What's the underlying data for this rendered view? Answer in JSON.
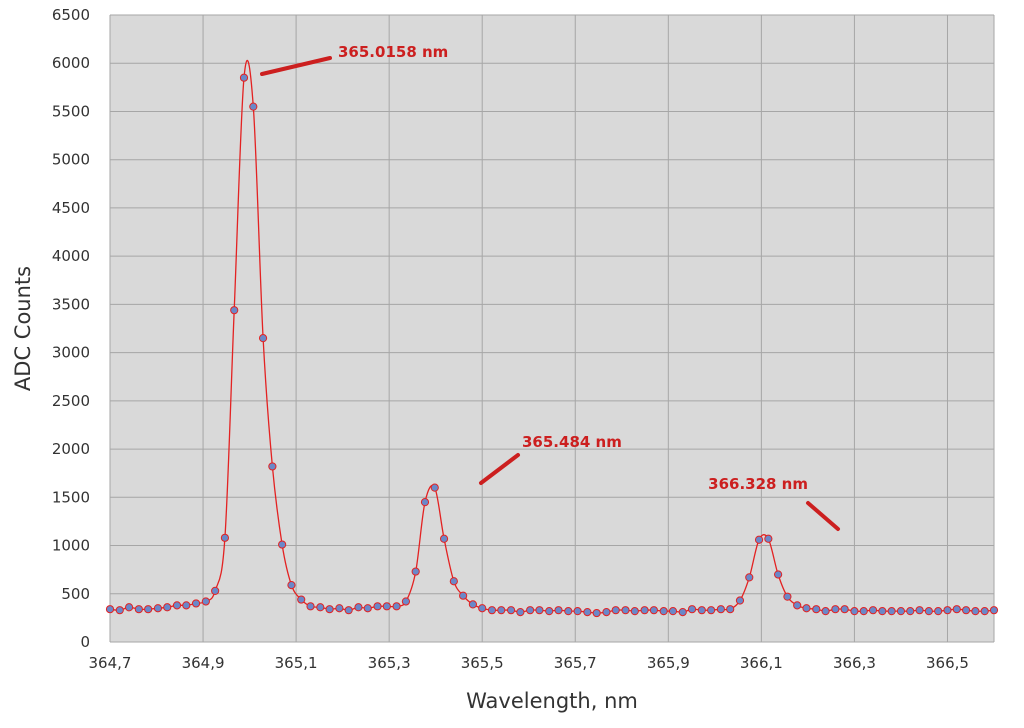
{
  "chart_data": {
    "type": "line",
    "title": "",
    "xlabel": "Wavelength, nm",
    "ylabel": "ADC Counts",
    "xlim": [
      364.7,
      366.6
    ],
    "ylim": [
      0,
      6500
    ],
    "grid": true,
    "colors": {
      "plot_background": "#d9d9d9",
      "gridline": "#a6a6a6",
      "line": "#e32222",
      "marker_fill": "#6a88c9",
      "marker_edge": "#e32222",
      "annotation": "#cc1f1f"
    },
    "x_ticks": [
      {
        "value": 364.7,
        "label": "364,7"
      },
      {
        "value": 364.9,
        "label": "364,9"
      },
      {
        "value": 365.1,
        "label": "365,1"
      },
      {
        "value": 365.3,
        "label": "365,3"
      },
      {
        "value": 365.5,
        "label": "365,5"
      },
      {
        "value": 365.7,
        "label": "365,7"
      },
      {
        "value": 365.9,
        "label": "365,9"
      },
      {
        "value": 366.1,
        "label": "366,1"
      },
      {
        "value": 366.3,
        "label": "366,3"
      },
      {
        "value": 366.5,
        "label": "366,5"
      }
    ],
    "y_ticks": [
      {
        "value": 0,
        "label": "0"
      },
      {
        "value": 500,
        "label": "500"
      },
      {
        "value": 1000,
        "label": "1000"
      },
      {
        "value": 1500,
        "label": "1500"
      },
      {
        "value": 2000,
        "label": "2000"
      },
      {
        "value": 2500,
        "label": "2500"
      },
      {
        "value": 3000,
        "label": "3000"
      },
      {
        "value": 3500,
        "label": "3500"
      },
      {
        "value": 4000,
        "label": "4000"
      },
      {
        "value": 4500,
        "label": "4500"
      },
      {
        "value": 5000,
        "label": "5000"
      },
      {
        "value": 5500,
        "label": "5500"
      },
      {
        "value": 6000,
        "label": "6000"
      },
      {
        "value": 6500,
        "label": "6500"
      }
    ],
    "series": [
      {
        "points": [
          [
            364.7,
            340
          ],
          [
            364.721,
            330
          ],
          [
            364.741,
            360
          ],
          [
            364.762,
            340
          ],
          [
            364.782,
            340
          ],
          [
            364.803,
            350
          ],
          [
            364.823,
            360
          ],
          [
            364.844,
            380
          ],
          [
            364.864,
            380
          ],
          [
            364.885,
            400
          ],
          [
            364.906,
            420
          ],
          [
            364.926,
            530
          ],
          [
            364.947,
            1080
          ],
          [
            364.967,
            3440
          ],
          [
            364.988,
            5850
          ],
          [
            365.008,
            5550
          ],
          [
            365.029,
            3150
          ],
          [
            365.049,
            1820
          ],
          [
            365.07,
            1010
          ],
          [
            365.09,
            590
          ],
          [
            365.111,
            440
          ],
          [
            365.131,
            370
          ],
          [
            365.152,
            360
          ],
          [
            365.172,
            340
          ],
          [
            365.193,
            350
          ],
          [
            365.213,
            330
          ],
          [
            365.234,
            360
          ],
          [
            365.254,
            350
          ],
          [
            365.275,
            370
          ],
          [
            365.295,
            370
          ],
          [
            365.316,
            370
          ],
          [
            365.336,
            420
          ],
          [
            365.357,
            730
          ],
          [
            365.377,
            1450
          ],
          [
            365.398,
            1600
          ],
          [
            365.418,
            1070
          ],
          [
            365.439,
            630
          ],
          [
            365.459,
            480
          ],
          [
            365.48,
            390
          ],
          [
            365.5,
            350
          ],
          [
            365.521,
            330
          ],
          [
            365.541,
            330
          ],
          [
            365.562,
            330
          ],
          [
            365.582,
            310
          ],
          [
            365.603,
            330
          ],
          [
            365.623,
            330
          ],
          [
            365.644,
            320
          ],
          [
            365.664,
            330
          ],
          [
            365.685,
            320
          ],
          [
            365.705,
            320
          ],
          [
            365.726,
            310
          ],
          [
            365.746,
            300
          ],
          [
            365.767,
            310
          ],
          [
            365.787,
            330
          ],
          [
            365.808,
            330
          ],
          [
            365.828,
            320
          ],
          [
            365.849,
            330
          ],
          [
            365.869,
            330
          ],
          [
            365.89,
            320
          ],
          [
            365.91,
            320
          ],
          [
            365.931,
            310
          ],
          [
            365.951,
            340
          ],
          [
            365.972,
            330
          ],
          [
            365.992,
            330
          ],
          [
            366.013,
            340
          ],
          [
            366.033,
            340
          ],
          [
            366.054,
            430
          ],
          [
            366.074,
            670
          ],
          [
            366.095,
            1060
          ],
          [
            366.115,
            1070
          ],
          [
            366.136,
            700
          ],
          [
            366.156,
            470
          ],
          [
            366.177,
            380
          ],
          [
            366.197,
            350
          ],
          [
            366.218,
            340
          ],
          [
            366.238,
            320
          ],
          [
            366.259,
            340
          ],
          [
            366.279,
            340
          ],
          [
            366.3,
            320
          ],
          [
            366.32,
            320
          ],
          [
            366.34,
            330
          ],
          [
            366.36,
            320
          ],
          [
            366.38,
            320
          ],
          [
            366.4,
            320
          ],
          [
            366.42,
            320
          ],
          [
            366.44,
            330
          ],
          [
            366.46,
            320
          ],
          [
            366.48,
            320
          ],
          [
            366.5,
            330
          ],
          [
            366.52,
            340
          ],
          [
            366.54,
            330
          ],
          [
            366.56,
            320
          ],
          [
            366.58,
            320
          ],
          [
            366.6,
            330
          ]
        ]
      }
    ],
    "annotations": [
      {
        "text": "365.0158 nm",
        "peak": [
          364.988,
          5850
        ]
      },
      {
        "text": "365.484 nm",
        "peak": [
          365.398,
          1600
        ]
      },
      {
        "text": "366.328 nm",
        "peak": [
          366.115,
          1070
        ]
      }
    ]
  }
}
